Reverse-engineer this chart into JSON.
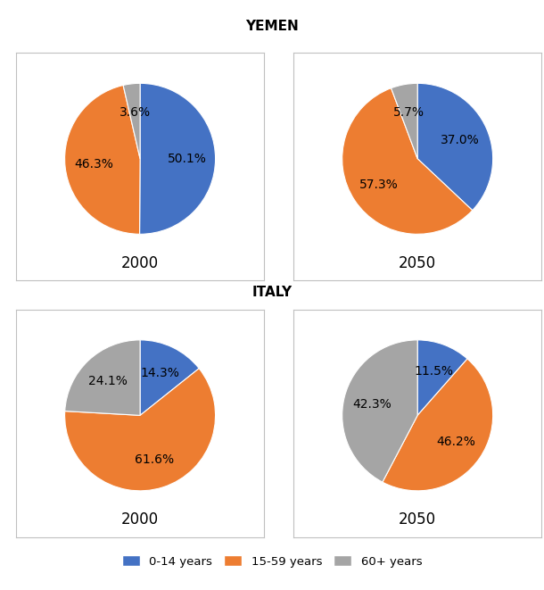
{
  "title_yemen": "YEMEN",
  "title_italy": "ITALY",
  "colors": {
    "0-14 years": "#4472C4",
    "15-59 years": "#ED7D31",
    "60+ years": "#A5A5A5"
  },
  "yemen_2000": {
    "label": "2000",
    "values": [
      50.1,
      46.3,
      3.6
    ],
    "labels": [
      "50.1%",
      "46.3%",
      "3.6%"
    ],
    "startangle": 90,
    "order": [
      "0-14 years",
      "15-59 years",
      "60+ years"
    ]
  },
  "yemen_2050": {
    "label": "2050",
    "values": [
      37.0,
      57.3,
      5.7
    ],
    "labels": [
      "37.0%",
      "57.3%",
      "5.7%"
    ],
    "startangle": 90,
    "order": [
      "0-14 years",
      "15-59 years",
      "60+ years"
    ]
  },
  "italy_2000": {
    "label": "2000",
    "values": [
      14.3,
      61.6,
      24.1
    ],
    "labels": [
      "14.3%",
      "61.6%",
      "24.1%"
    ],
    "startangle": 90,
    "order": [
      "0-14 years",
      "15-59 years",
      "60+ years"
    ]
  },
  "italy_2050": {
    "label": "2050",
    "values": [
      11.5,
      46.2,
      42.3
    ],
    "labels": [
      "11.5%",
      "46.2%",
      "42.3%"
    ],
    "startangle": 90,
    "order": [
      "0-14 years",
      "15-59 years",
      "60+ years"
    ]
  },
  "legend_labels": [
    "0-14 years",
    "15-59 years",
    "60+ years"
  ],
  "label_fontsize": 10,
  "year_fontsize": 12,
  "title_fontsize": 11,
  "background_color": "#FFFFFF",
  "box_color": "#C0C0C0"
}
